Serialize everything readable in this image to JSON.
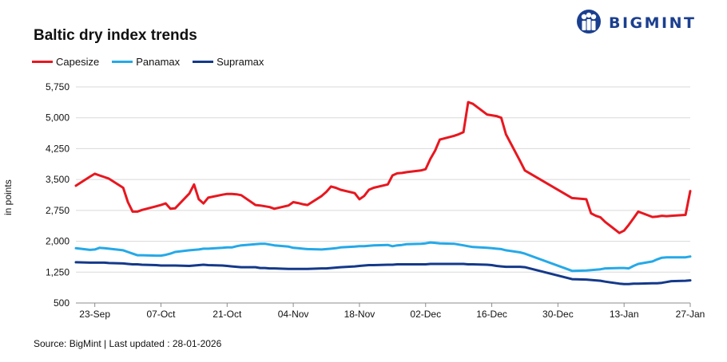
{
  "brand": {
    "name": "BIGMINT",
    "color": "#1b3f8f"
  },
  "footer": {
    "source": "Source: BigMint | Last updated : 28-01-2026"
  },
  "chart_data": {
    "type": "line",
    "title": "Baltic dry index trends",
    "xlabel": "",
    "ylabel": "in points",
    "ylim": [
      500,
      5750
    ],
    "yticks": [
      500,
      1250,
      2000,
      2750,
      3500,
      4250,
      5000,
      5750
    ],
    "ytick_labels": [
      "500",
      "1,250",
      "2,000",
      "2,750",
      "3,500",
      "4,250",
      "5,000",
      "5,750"
    ],
    "x": [
      "2025-09-19",
      "2025-09-22",
      "2025-09-23",
      "2025-09-24",
      "2025-09-25",
      "2025-09-26",
      "2025-09-29",
      "2025-09-30",
      "2025-10-01",
      "2025-10-02",
      "2025-10-03",
      "2025-10-06",
      "2025-10-07",
      "2025-10-08",
      "2025-10-09",
      "2025-10-10",
      "2025-10-13",
      "2025-10-14",
      "2025-10-15",
      "2025-10-16",
      "2025-10-17",
      "2025-10-20",
      "2025-10-21",
      "2025-10-22",
      "2025-10-23",
      "2025-10-24",
      "2025-10-27",
      "2025-10-28",
      "2025-10-29",
      "2025-10-30",
      "2025-10-31",
      "2025-11-03",
      "2025-11-04",
      "2025-11-05",
      "2025-11-06",
      "2025-11-07",
      "2025-11-10",
      "2025-11-11",
      "2025-11-12",
      "2025-11-13",
      "2025-11-14",
      "2025-11-17",
      "2025-11-18",
      "2025-11-19",
      "2025-11-20",
      "2025-11-21",
      "2025-11-24",
      "2025-11-25",
      "2025-11-26",
      "2025-11-27",
      "2025-11-28",
      "2025-12-01",
      "2025-12-02",
      "2025-12-03",
      "2025-12-04",
      "2025-12-05",
      "2025-12-08",
      "2025-12-09",
      "2025-12-10",
      "2025-12-11",
      "2025-12-12",
      "2025-12-15",
      "2025-12-16",
      "2025-12-17",
      "2025-12-18",
      "2025-12-19",
      "2025-12-22",
      "2025-12-23",
      "2026-01-02",
      "2026-01-05",
      "2026-01-06",
      "2026-01-07",
      "2026-01-08",
      "2026-01-09",
      "2026-01-12",
      "2026-01-13",
      "2026-01-14",
      "2026-01-15",
      "2026-01-16",
      "2026-01-19",
      "2026-01-20",
      "2026-01-21",
      "2026-01-22",
      "2026-01-23",
      "2026-01-26",
      "2026-01-27"
    ],
    "x_ticks": [
      "2025-09-23",
      "2025-10-07",
      "2025-10-21",
      "2025-11-04",
      "2025-11-18",
      "2025-12-02",
      "2025-12-16",
      "2025-12-30",
      "2026-01-13",
      "2026-01-27"
    ],
    "x_tick_labels": [
      "23-Sep",
      "07-Oct",
      "21-Oct",
      "04-Nov",
      "18-Nov",
      "02-Dec",
      "16-Dec",
      "30-Dec",
      "13-Jan",
      "27-Jan"
    ],
    "x_range": [
      "2025-09-19",
      "2026-01-27"
    ],
    "grid": "horizontal",
    "legend_position": "top-left",
    "series": [
      {
        "name": "Capesize",
        "color": "#e8171f",
        "values": [
          3350,
          3570,
          3640,
          3600,
          3560,
          3520,
          3300,
          2950,
          2720,
          2720,
          2760,
          2850,
          2880,
          2920,
          2790,
          2800,
          3160,
          3380,
          3020,
          2920,
          3060,
          3130,
          3150,
          3150,
          3140,
          3120,
          2880,
          2870,
          2850,
          2830,
          2790,
          2870,
          2950,
          2930,
          2900,
          2880,
          3100,
          3200,
          3330,
          3300,
          3250,
          3170,
          3020,
          3100,
          3250,
          3300,
          3380,
          3600,
          3650,
          3660,
          3680,
          3720,
          3750,
          4000,
          4200,
          4470,
          4560,
          4600,
          4650,
          5380,
          5340,
          5080,
          5060,
          5040,
          5000,
          4600,
          3950,
          3720,
          3050,
          3020,
          2680,
          2620,
          2580,
          2470,
          2200,
          2260,
          2400,
          2560,
          2720,
          2590,
          2600,
          2620,
          2610,
          2620,
          2640,
          3220
        ]
      },
      {
        "name": "Panamax",
        "color": "#25a9e8",
        "values": [
          1830,
          1790,
          1800,
          1840,
          1830,
          1820,
          1780,
          1740,
          1700,
          1660,
          1660,
          1650,
          1650,
          1670,
          1700,
          1740,
          1780,
          1790,
          1800,
          1820,
          1820,
          1840,
          1850,
          1850,
          1880,
          1900,
          1930,
          1940,
          1940,
          1920,
          1900,
          1870,
          1840,
          1830,
          1820,
          1810,
          1800,
          1810,
          1820,
          1830,
          1850,
          1870,
          1880,
          1880,
          1890,
          1900,
          1910,
          1880,
          1900,
          1910,
          1930,
          1940,
          1950,
          1970,
          1960,
          1950,
          1940,
          1920,
          1900,
          1880,
          1860,
          1840,
          1830,
          1820,
          1810,
          1780,
          1730,
          1700,
          1280,
          1290,
          1300,
          1310,
          1320,
          1340,
          1350,
          1350,
          1340,
          1400,
          1450,
          1510,
          1560,
          1600,
          1610,
          1610,
          1610,
          1630
        ]
      },
      {
        "name": "Supramax",
        "color": "#14398a",
        "values": [
          1490,
          1480,
          1480,
          1480,
          1480,
          1470,
          1460,
          1450,
          1440,
          1440,
          1430,
          1420,
          1410,
          1410,
          1410,
          1410,
          1400,
          1410,
          1420,
          1430,
          1420,
          1410,
          1400,
          1390,
          1380,
          1370,
          1370,
          1350,
          1350,
          1340,
          1340,
          1330,
          1330,
          1330,
          1330,
          1330,
          1340,
          1340,
          1350,
          1360,
          1370,
          1390,
          1400,
          1410,
          1420,
          1420,
          1430,
          1430,
          1440,
          1440,
          1440,
          1440,
          1440,
          1450,
          1450,
          1450,
          1450,
          1450,
          1450,
          1440,
          1440,
          1430,
          1420,
          1400,
          1390,
          1380,
          1380,
          1370,
          1080,
          1070,
          1060,
          1050,
          1040,
          1020,
          970,
          960,
          960,
          970,
          970,
          980,
          980,
          990,
          1010,
          1030,
          1040,
          1050
        ]
      }
    ]
  }
}
